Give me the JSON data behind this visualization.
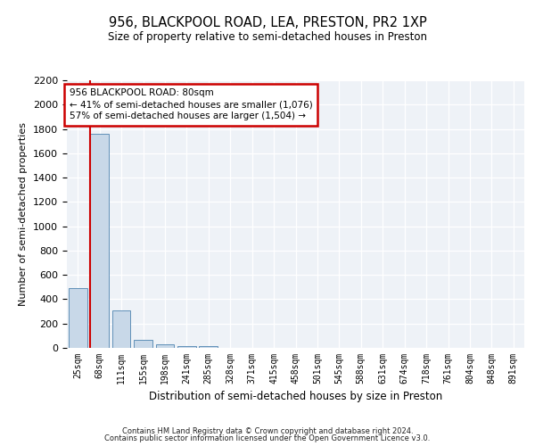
{
  "title1": "956, BLACKPOOL ROAD, LEA, PRESTON, PR2 1XP",
  "title2": "Size of property relative to semi-detached houses in Preston",
  "xlabel": "Distribution of semi-detached houses by size in Preston",
  "ylabel": "Number of semi-detached properties",
  "footer1": "Contains HM Land Registry data © Crown copyright and database right 2024.",
  "footer2": "Contains public sector information licensed under the Open Government Licence v3.0.",
  "annotation_title": "956 BLACKPOOL ROAD: 80sqm",
  "annotation_line1": "← 41% of semi-detached houses are smaller (1,076)",
  "annotation_line2": "57% of semi-detached houses are larger (1,504) →",
  "bar_color": "#c8d8e8",
  "bar_edge_color": "#6090b8",
  "marker_color": "#cc0000",
  "annotation_box_color": "#cc0000",
  "categories": [
    "25sqm",
    "68sqm",
    "111sqm",
    "155sqm",
    "198sqm",
    "241sqm",
    "285sqm",
    "328sqm",
    "371sqm",
    "415sqm",
    "458sqm",
    "501sqm",
    "545sqm",
    "588sqm",
    "631sqm",
    "674sqm",
    "718sqm",
    "761sqm",
    "804sqm",
    "848sqm",
    "891sqm"
  ],
  "values": [
    490,
    1760,
    310,
    65,
    30,
    18,
    12,
    0,
    0,
    0,
    0,
    0,
    0,
    0,
    0,
    0,
    0,
    0,
    0,
    0,
    0
  ],
  "ylim": [
    0,
    2200
  ],
  "yticks": [
    0,
    200,
    400,
    600,
    800,
    1000,
    1200,
    1400,
    1600,
    1800,
    2000,
    2200
  ],
  "marker_bar_index": 1,
  "fig_width": 6.0,
  "fig_height": 5.0,
  "dpi": 100
}
